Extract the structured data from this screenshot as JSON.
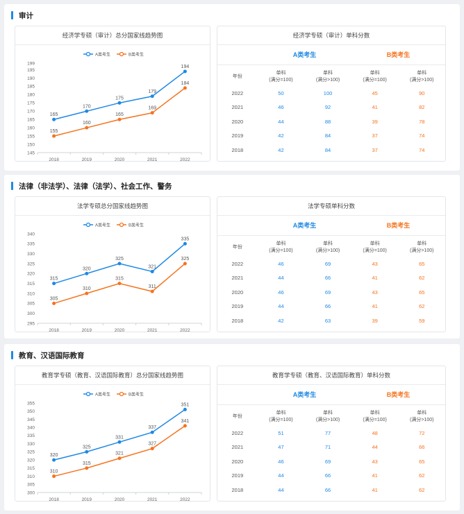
{
  "colors": {
    "a": "#1e88e5",
    "b": "#f5731f"
  },
  "sections": [
    {
      "title": "审计",
      "chart_title": "经济学专硕（审计）总分国家线趋势图",
      "table_title": "经济学专硕（审计）单科分数",
      "chart_data": {
        "type": "line",
        "title": "经济学专硕（审计）总分国家线趋势图",
        "categories": [
          "2018",
          "2019",
          "2020",
          "2021",
          "2022"
        ],
        "series": [
          {
            "name": "A类考生",
            "values": [
              165,
              170,
              175,
              179,
              194
            ]
          },
          {
            "name": "B类考生",
            "values": [
              155,
              160,
              165,
              169,
              184
            ]
          }
        ],
        "ylim": [
          145,
          199
        ],
        "yticks": [
          145,
          150,
          155,
          160,
          165,
          170,
          175,
          180,
          185,
          190,
          195,
          199
        ],
        "legend": "top-center",
        "grid": false
      },
      "table": {
        "group_a": "A类考生",
        "group_b": "B类考生",
        "headers": [
          "年份",
          [
            "单科",
            "(满分=100)"
          ],
          [
            "单科",
            "(满分>100)"
          ],
          [
            "单科",
            "(满分=100)"
          ],
          [
            "单科",
            "(满分>100)"
          ]
        ],
        "rows": [
          [
            "2022",
            "50",
            "100",
            "45",
            "90"
          ],
          [
            "2021",
            "46",
            "92",
            "41",
            "82"
          ],
          [
            "2020",
            "44",
            "88",
            "39",
            "78"
          ],
          [
            "2019",
            "42",
            "84",
            "37",
            "74"
          ],
          [
            "2018",
            "42",
            "84",
            "37",
            "74"
          ]
        ]
      }
    },
    {
      "title": "法律（非法学）、法律（法学）、社会工作、警务",
      "chart_title": "法学专硕总分国家线趋势图",
      "table_title": "法学专硕单科分数",
      "chart_data": {
        "type": "line",
        "title": "法学专硕总分国家线趋势图",
        "categories": [
          "2018",
          "2019",
          "2020",
          "2021",
          "2022"
        ],
        "series": [
          {
            "name": "A类考生",
            "values": [
              315,
              320,
              325,
              321,
              335
            ]
          },
          {
            "name": "B类考生",
            "values": [
              305,
              310,
              315,
              311,
              325
            ]
          }
        ],
        "ylim": [
          295,
          340
        ],
        "yticks": [
          295,
          300,
          305,
          310,
          315,
          320,
          325,
          330,
          335,
          340
        ],
        "legend": "top-center",
        "grid": false
      },
      "table": {
        "group_a": "A类考生",
        "group_b": "B类考生",
        "headers": [
          "年份",
          [
            "单科",
            "(满分=100)"
          ],
          [
            "单科",
            "(满分>100)"
          ],
          [
            "单科",
            "(满分=100)"
          ],
          [
            "单科",
            "(满分>100)"
          ]
        ],
        "rows": [
          [
            "2022",
            "46",
            "69",
            "43",
            "65"
          ],
          [
            "2021",
            "44",
            "66",
            "41",
            "62"
          ],
          [
            "2020",
            "46",
            "69",
            "43",
            "65"
          ],
          [
            "2019",
            "44",
            "66",
            "41",
            "62"
          ],
          [
            "2018",
            "42",
            "63",
            "39",
            "59"
          ]
        ]
      }
    },
    {
      "title": "教育、汉语国际教育",
      "chart_title": "教育学专硕（教育、汉语国际教育）总分国家线趋势图",
      "table_title": "教育学专硕（教育、汉语国际教育）单科分数",
      "chart_data": {
        "type": "line",
        "title": "教育学专硕（教育、汉语国际教育）总分国家线趋势图",
        "categories": [
          "2018",
          "2019",
          "2020",
          "2021",
          "2022"
        ],
        "series": [
          {
            "name": "A类考生",
            "values": [
              320,
              325,
              331,
              337,
              351
            ]
          },
          {
            "name": "B类考生",
            "values": [
              310,
              315,
              321,
              327,
              341
            ]
          }
        ],
        "ylim": [
          300,
          355
        ],
        "yticks": [
          300,
          305,
          310,
          315,
          320,
          325,
          330,
          335,
          340,
          345,
          350,
          355
        ],
        "legend": "top-center",
        "grid": false
      },
      "table": {
        "group_a": "A类考生",
        "group_b": "B类考生",
        "headers": [
          "年份",
          [
            "单科",
            "(满分=100)"
          ],
          [
            "单科",
            "(满分>100)"
          ],
          [
            "单科",
            "(满分=100)"
          ],
          [
            "单科",
            "(满分>100)"
          ]
        ],
        "rows": [
          [
            "2022",
            "51",
            "77",
            "48",
            "72"
          ],
          [
            "2021",
            "47",
            "71",
            "44",
            "66"
          ],
          [
            "2020",
            "46",
            "69",
            "43",
            "65"
          ],
          [
            "2019",
            "44",
            "66",
            "41",
            "62"
          ],
          [
            "2018",
            "44",
            "66",
            "41",
            "62"
          ]
        ]
      }
    }
  ]
}
